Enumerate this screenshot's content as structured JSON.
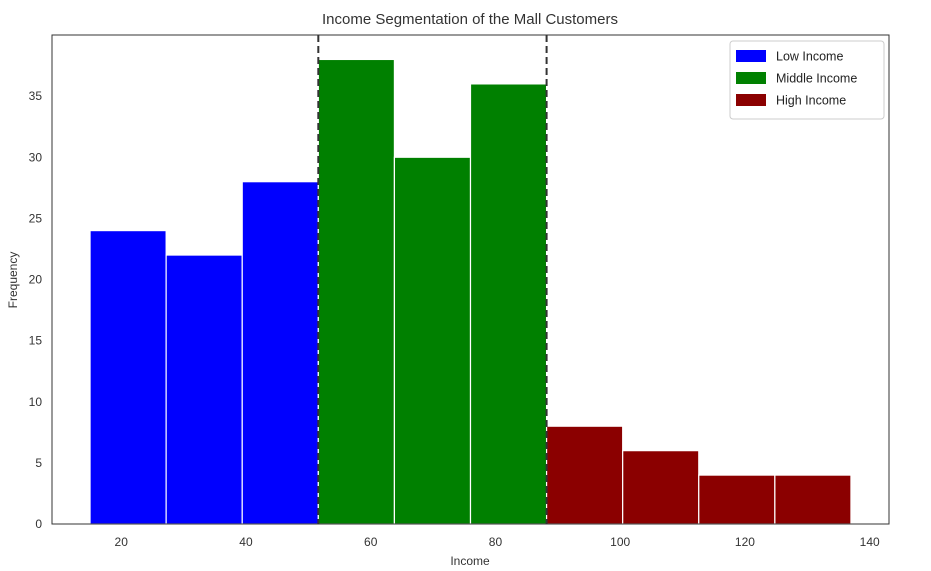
{
  "chart_data": {
    "type": "bar",
    "title": "Income Segmentation of the Mall Customers",
    "xlabel": "Income",
    "ylabel": "Frequency",
    "xlim": [
      8.9,
      143.1
    ],
    "ylim": [
      0,
      40
    ],
    "xticks": [
      20,
      40,
      60,
      80,
      100,
      120,
      140
    ],
    "yticks": [
      0,
      5,
      10,
      15,
      20,
      25,
      30,
      35
    ],
    "grid": false,
    "legend_position": "top-right",
    "series": [
      {
        "name": "Low Income",
        "color": "#0000ff",
        "bins": [
          {
            "x0": 15.0,
            "x1": 27.2,
            "value": 24
          },
          {
            "x0": 27.2,
            "x1": 39.4,
            "value": 22
          },
          {
            "x0": 39.4,
            "x1": 51.6,
            "value": 28
          }
        ]
      },
      {
        "name": "Middle Income",
        "color": "#008000",
        "bins": [
          {
            "x0": 51.6,
            "x1": 63.8,
            "value": 38
          },
          {
            "x0": 63.8,
            "x1": 76.0,
            "value": 30
          },
          {
            "x0": 76.0,
            "x1": 88.2,
            "value": 36
          }
        ]
      },
      {
        "name": "High Income",
        "color": "#8b0000",
        "bins": [
          {
            "x0": 88.2,
            "x1": 100.4,
            "value": 8
          },
          {
            "x0": 100.4,
            "x1": 112.6,
            "value": 6
          },
          {
            "x0": 112.6,
            "x1": 124.8,
            "value": 4
          },
          {
            "x0": 124.8,
            "x1": 137.0,
            "value": 4
          }
        ]
      }
    ],
    "vlines": [
      51.6,
      88.2
    ]
  }
}
